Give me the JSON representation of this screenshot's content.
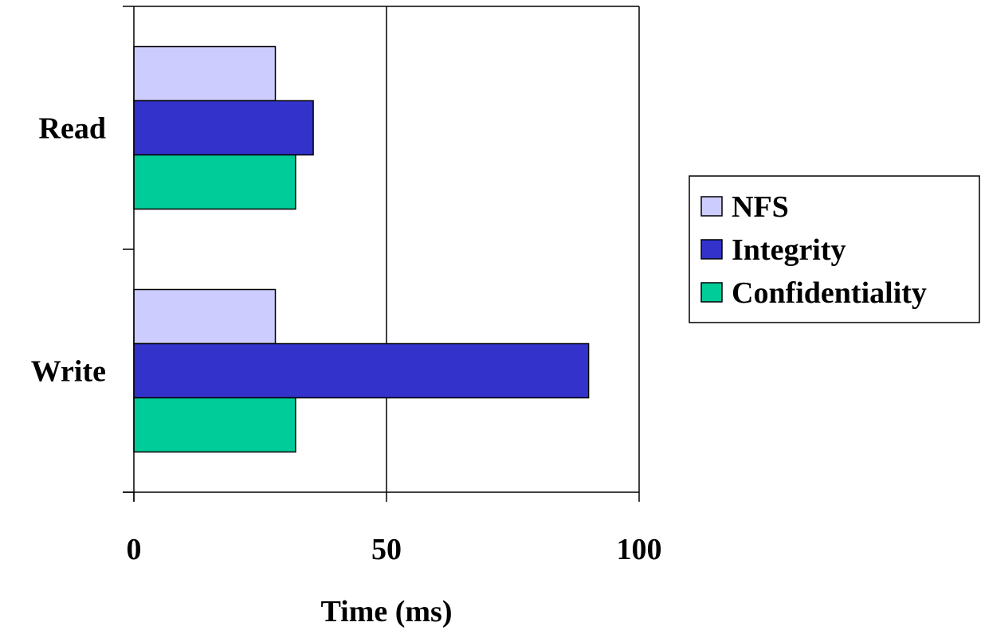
{
  "chart_data": {
    "type": "bar",
    "orientation": "horizontal",
    "title": "",
    "categories": [
      "Read",
      "Write"
    ],
    "series": [
      {
        "name": "NFS",
        "values": [
          28,
          28
        ],
        "color": "#ccccff"
      },
      {
        "name": "Integrity",
        "values": [
          35.5,
          90
        ],
        "color": "#3333cc"
      },
      {
        "name": "Confidentiality",
        "values": [
          32,
          32
        ],
        "color": "#00cc99"
      }
    ],
    "xlabel": "Time (ms)",
    "ylabel": "",
    "xlim": [
      0,
      100
    ],
    "xticks": [
      "0",
      "50",
      "100"
    ],
    "grid": "vertical-major",
    "legend": "right"
  }
}
